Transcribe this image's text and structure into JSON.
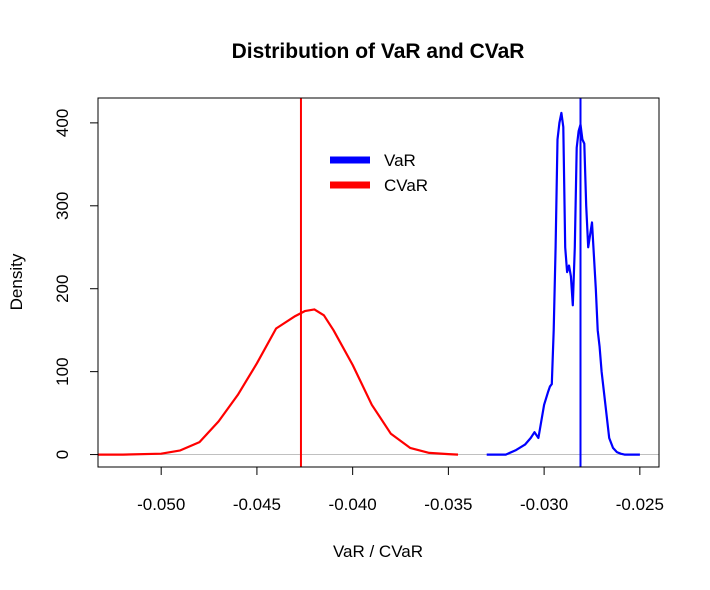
{
  "chart_data": {
    "type": "line",
    "title": "Distribution of VaR and CVaR",
    "xlabel": "VaR / CVaR",
    "ylabel": "Density",
    "xlim": [
      -0.0533,
      -0.024
    ],
    "ylim": [
      -15,
      430
    ],
    "xticks": [
      -0.05,
      -0.045,
      -0.04,
      -0.035,
      -0.03,
      -0.025
    ],
    "xtick_labels": [
      "-0.050",
      "-0.045",
      "-0.040",
      "-0.035",
      "-0.030",
      "-0.025"
    ],
    "yticks": [
      0,
      100,
      200,
      300,
      400
    ],
    "ytick_labels": [
      "0",
      "100",
      "200",
      "300",
      "400"
    ],
    "legend_position": "top-center",
    "grid": false,
    "baseline": {
      "y": 0,
      "color": "#c0c0c0"
    },
    "series": [
      {
        "name": "VaR",
        "color": "#0000ff",
        "x": [
          -0.033,
          -0.032,
          -0.0315,
          -0.031,
          -0.0307,
          -0.0305,
          -0.0303,
          -0.03,
          -0.0298,
          -0.0297,
          -0.0296,
          -0.0295,
          -0.0294,
          -0.0293,
          -0.0292,
          -0.0291,
          -0.029,
          -0.0289,
          -0.0288,
          -0.0287,
          -0.0286,
          -0.0285,
          -0.0284,
          -0.0283,
          -0.0282,
          -0.0281,
          -0.028,
          -0.0279,
          -0.0278,
          -0.0277,
          -0.0276,
          -0.0275,
          -0.0274,
          -0.0273,
          -0.0272,
          -0.0271,
          -0.027,
          -0.0268,
          -0.0266,
          -0.0264,
          -0.0262,
          -0.026,
          -0.0258,
          -0.0256,
          -0.0254,
          -0.0252,
          -0.025
        ],
        "y": [
          0,
          0,
          5,
          12,
          20,
          27,
          20,
          60,
          75,
          82,
          85,
          150,
          250,
          380,
          400,
          412,
          395,
          250,
          220,
          228,
          215,
          180,
          250,
          370,
          390,
          398,
          380,
          375,
          300,
          250,
          265,
          280,
          240,
          200,
          150,
          130,
          100,
          60,
          20,
          8,
          3,
          1,
          0,
          0,
          0,
          0,
          0
        ]
      },
      {
        "name": "CVaR",
        "color": "#ff0000",
        "x": [
          -0.0533,
          -0.052,
          -0.05,
          -0.049,
          -0.048,
          -0.047,
          -0.046,
          -0.045,
          -0.044,
          -0.043,
          -0.0425,
          -0.042,
          -0.0415,
          -0.041,
          -0.04,
          -0.039,
          -0.038,
          -0.037,
          -0.036,
          -0.035,
          -0.0345
        ],
        "y": [
          0,
          0,
          1,
          5,
          15,
          40,
          72,
          110,
          152,
          167,
          173,
          175,
          168,
          150,
          108,
          60,
          25,
          8,
          2,
          0.5,
          0
        ]
      }
    ],
    "vlines": [
      {
        "series": "VaR",
        "x": -0.0281,
        "color": "#0000ff"
      },
      {
        "series": "CVaR",
        "x": -0.0427,
        "color": "#ff0000"
      }
    ]
  }
}
